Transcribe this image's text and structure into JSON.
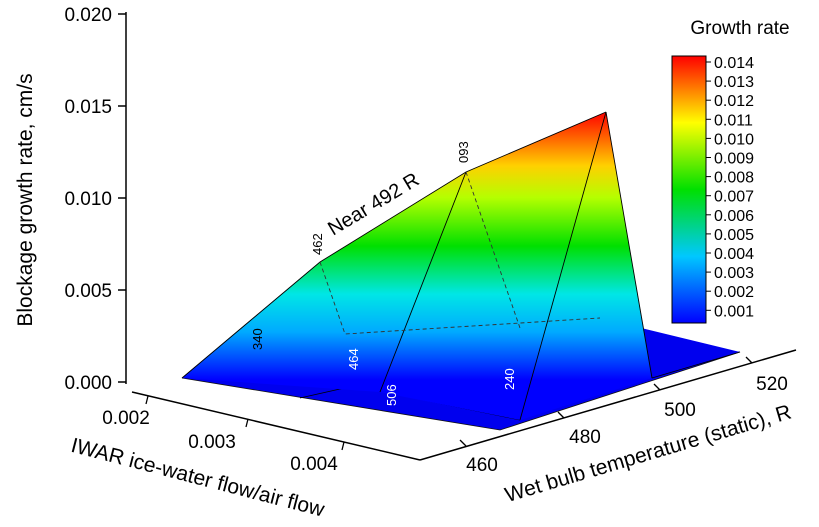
{
  "chart_data": {
    "type": "surface3d",
    "z_axis": {
      "label": "Blockage growth rate, cm/s",
      "range": [
        0,
        0.02
      ],
      "ticks": [
        "0.000",
        "0.005",
        "0.010",
        "0.015",
        "0.020"
      ]
    },
    "x_axis": {
      "label": "IWAR ice-water flow/air flow",
      "ticks": [
        "0.002",
        "0.003",
        "0.004"
      ]
    },
    "y_axis": {
      "label": "Wet bulb temperature (static), R",
      "ticks": [
        "460",
        "480",
        "500",
        "520"
      ]
    },
    "ridge_annotation": "Near 492 R",
    "point_labels": [
      {
        "label": "340",
        "color": "black"
      },
      {
        "label": "462",
        "color": "black"
      },
      {
        "label": "093",
        "color": "black"
      },
      {
        "label": "464",
        "color": "white"
      },
      {
        "label": "506",
        "color": "white"
      },
      {
        "label": "240",
        "color": "white"
      }
    ],
    "colorbar": {
      "title": "Growth rate",
      "ticks": [
        "0.014",
        "0.013",
        "0.012",
        "0.011",
        "0.010",
        "0.009",
        "0.008",
        "0.007",
        "0.006",
        "0.005",
        "0.004",
        "0.003",
        "0.002",
        "0.001"
      ],
      "range": [
        0.001,
        0.014
      ]
    },
    "grid": false,
    "legend_position": "right"
  }
}
